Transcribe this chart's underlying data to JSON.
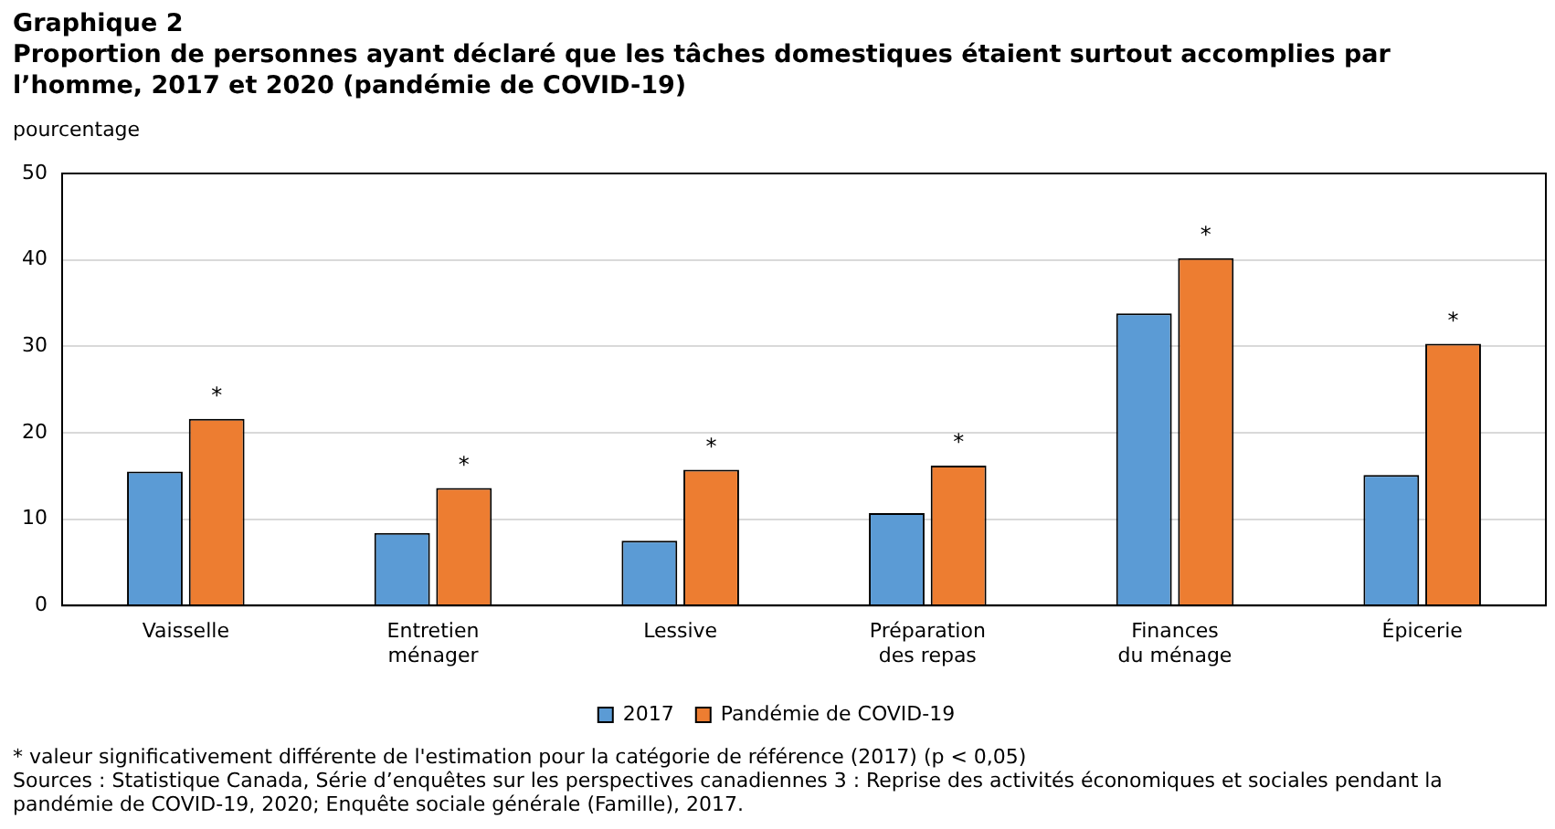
{
  "chart_data": {
    "type": "bar",
    "title": "Graphique 2",
    "subtitle": "Proportion de personnes ayant déclaré que les tâches domestiques étaient surtout accomplies par l’homme, 2017 et 2020 (pandémie de COVID-19)",
    "ylabel": "pourcentage",
    "categories": [
      "Vaisselle",
      "Entretien\nménager",
      "Lessive",
      "Préparation\ndes repas",
      "Finances\ndu ménage",
      "Épicerie"
    ],
    "series": [
      {
        "name": "2017",
        "color": "#5b9bd5",
        "values": [
          15.5,
          8.4,
          7.5,
          10.7,
          33.8,
          15.1
        ]
      },
      {
        "name": "Pandémie de COVID-19",
        "color": "#ed7d31",
        "values": [
          21.6,
          13.6,
          15.7,
          16.2,
          40.2,
          30.3
        ]
      }
    ],
    "ylim": [
      0,
      50
    ],
    "yticks": [
      0,
      10,
      20,
      30,
      40,
      50
    ],
    "grid": "y",
    "legend": "bottom",
    "annotations": [
      {
        "text": "*",
        "x": "Vaisselle",
        "y": 21.6
      },
      {
        "text": "*",
        "x": "Entretien\nménager",
        "y": 13.6
      },
      {
        "text": "*",
        "x": "Lessive",
        "y": 15.7
      },
      {
        "text": "*",
        "x": "Préparation\ndes repas",
        "y": 16.2
      },
      {
        "text": "*",
        "x": "Finances\ndu ménage",
        "y": 40.2
      },
      {
        "text": "*",
        "x": "Épicerie",
        "y": 30.3
      },
      "* valeur significativement différente de l'estimation pour la catégorie de référence (2017) (p < 0,05)",
      "Sources : Statistique Canada, Série d’enquêtes sur les perspectives canadiennes 3 : Reprise des activités économiques et sociales pendant la pandémie de COVID-19, 2020; Enquête sociale générale (Famille), 2017."
    ]
  }
}
